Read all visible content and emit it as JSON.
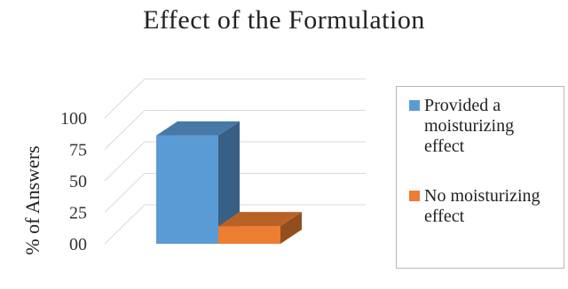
{
  "chart_data": {
    "type": "bar",
    "title": "Effect of the Formulation",
    "ylabel": "% of Answers",
    "ylim": [
      0,
      100
    ],
    "y_ticks": [
      "00",
      "25",
      "50",
      "75",
      "100"
    ],
    "grid": true,
    "legend_position": "right",
    "three_d": true,
    "series": [
      {
        "name": "Provided a moisturizing effect",
        "value": 86,
        "color": "#5b9bd5"
      },
      {
        "name": "No moisturizing effect",
        "value": 14,
        "color": "#ed7d31"
      }
    ]
  },
  "legend": {
    "items": [
      {
        "lines": [
          "Provided a",
          "moisturizing",
          "effect"
        ],
        "color": "#5b9bd5"
      },
      {
        "lines": [
          "No moisturizing",
          "effect"
        ],
        "color": "#ed7d31"
      }
    ]
  }
}
